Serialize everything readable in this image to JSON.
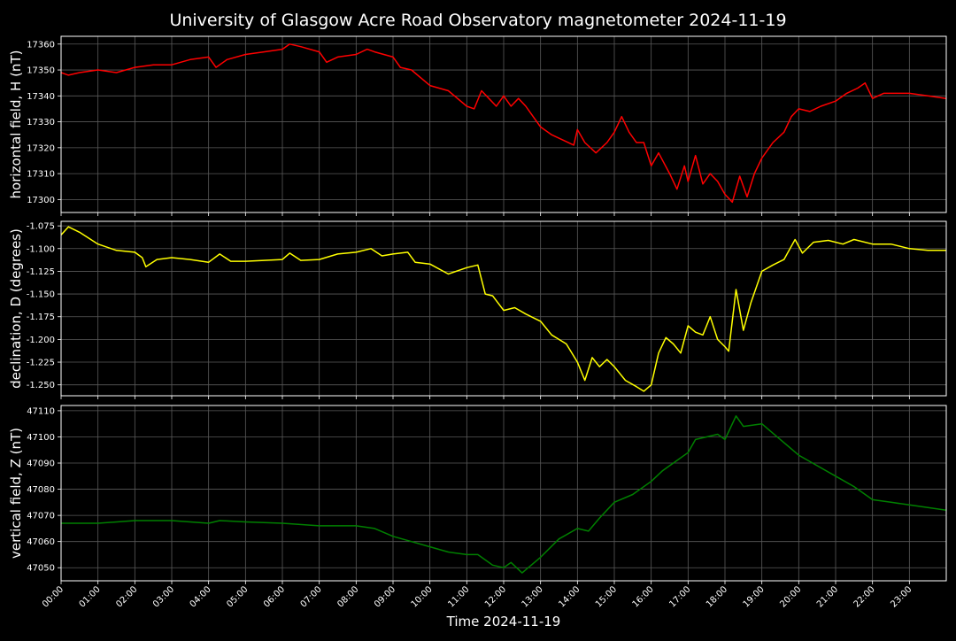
{
  "chart_data": {
    "type": "line",
    "title": "University of Glasgow Acre Road Observatory magnetometer 2024-11-19",
    "xlabel": "Time 2024-11-19",
    "x_unit": "hours",
    "xlim": [
      0,
      24
    ],
    "x_ticks": [
      "00:00",
      "01:00",
      "02:00",
      "03:00",
      "04:00",
      "05:00",
      "06:00",
      "07:00",
      "08:00",
      "09:00",
      "10:00",
      "11:00",
      "12:00",
      "13:00",
      "14:00",
      "15:00",
      "16:00",
      "17:00",
      "18:00",
      "19:00",
      "20:00",
      "21:00",
      "22:00",
      "23:00"
    ],
    "grid": true,
    "panels": [
      {
        "ylabel": "horizontal field, H (nT)",
        "color": "#ff0000",
        "ylim": [
          17295,
          17363
        ],
        "y_ticks": [
          "17300",
          "17310",
          "17320",
          "17330",
          "17340",
          "17350",
          "17360"
        ],
        "y_tick_values": [
          17300,
          17310,
          17320,
          17330,
          17340,
          17350,
          17360
        ],
        "points": [
          [
            0,
            17349
          ],
          [
            0.2,
            17348
          ],
          [
            0.5,
            17349
          ],
          [
            1,
            17350
          ],
          [
            1.5,
            17349
          ],
          [
            2,
            17351
          ],
          [
            2.5,
            17352
          ],
          [
            3,
            17352
          ],
          [
            3.5,
            17354
          ],
          [
            4,
            17355
          ],
          [
            4.2,
            17351
          ],
          [
            4.5,
            17354
          ],
          [
            5,
            17356
          ],
          [
            5.5,
            17357
          ],
          [
            6,
            17358
          ],
          [
            6.2,
            17360
          ],
          [
            6.5,
            17359
          ],
          [
            7,
            17357
          ],
          [
            7.2,
            17353
          ],
          [
            7.5,
            17355
          ],
          [
            8,
            17356
          ],
          [
            8.3,
            17358
          ],
          [
            8.5,
            17357
          ],
          [
            9,
            17355
          ],
          [
            9.2,
            17351
          ],
          [
            9.5,
            17350
          ],
          [
            10,
            17344
          ],
          [
            10.5,
            17342
          ],
          [
            11,
            17336
          ],
          [
            11.2,
            17335
          ],
          [
            11.4,
            17342
          ],
          [
            11.6,
            17339
          ],
          [
            11.8,
            17336
          ],
          [
            12,
            17340
          ],
          [
            12.2,
            17336
          ],
          [
            12.4,
            17339
          ],
          [
            12.6,
            17336
          ],
          [
            12.8,
            17332
          ],
          [
            13,
            17328
          ],
          [
            13.3,
            17325
          ],
          [
            13.6,
            17323
          ],
          [
            13.9,
            17321
          ],
          [
            14,
            17327
          ],
          [
            14.2,
            17322
          ],
          [
            14.5,
            17318
          ],
          [
            14.8,
            17322
          ],
          [
            15,
            17326
          ],
          [
            15.2,
            17332
          ],
          [
            15.4,
            17326
          ],
          [
            15.6,
            17322
          ],
          [
            15.8,
            17322
          ],
          [
            16,
            17313
          ],
          [
            16.2,
            17318
          ],
          [
            16.5,
            17310
          ],
          [
            16.7,
            17304
          ],
          [
            16.9,
            17313
          ],
          [
            17,
            17307
          ],
          [
            17.2,
            17317
          ],
          [
            17.4,
            17306
          ],
          [
            17.6,
            17310
          ],
          [
            17.8,
            17307
          ],
          [
            18,
            17302
          ],
          [
            18.2,
            17299
          ],
          [
            18.4,
            17309
          ],
          [
            18.6,
            17301
          ],
          [
            18.8,
            17310
          ],
          [
            19,
            17316
          ],
          [
            19.3,
            17322
          ],
          [
            19.6,
            17326
          ],
          [
            19.8,
            17332
          ],
          [
            20,
            17335
          ],
          [
            20.3,
            17334
          ],
          [
            20.6,
            17336
          ],
          [
            21,
            17338
          ],
          [
            21.3,
            17341
          ],
          [
            21.6,
            17343
          ],
          [
            21.8,
            17345
          ],
          [
            22,
            17339
          ],
          [
            22.3,
            17341
          ],
          [
            22.7,
            17341
          ],
          [
            23,
            17341
          ],
          [
            23.5,
            17340
          ],
          [
            24,
            17339
          ]
        ]
      },
      {
        "ylabel": "declination, D (degrees)",
        "color": "#ffff00",
        "ylim": [
          -1.262,
          -1.07
        ],
        "y_ticks": [
          "-1.075",
          "-1.100",
          "-1.125",
          "-1.150",
          "-1.175",
          "-1.200",
          "-1.225",
          "-1.250"
        ],
        "y_tick_values": [
          -1.075,
          -1.1,
          -1.125,
          -1.15,
          -1.175,
          -1.2,
          -1.225,
          -1.25
        ],
        "points": [
          [
            0,
            -1.085
          ],
          [
            0.2,
            -1.076
          ],
          [
            0.5,
            -1.082
          ],
          [
            1,
            -1.095
          ],
          [
            1.5,
            -1.102
          ],
          [
            2,
            -1.104
          ],
          [
            2.2,
            -1.11
          ],
          [
            2.3,
            -1.12
          ],
          [
            2.6,
            -1.112
          ],
          [
            3,
            -1.11
          ],
          [
            3.5,
            -1.112
          ],
          [
            4,
            -1.115
          ],
          [
            4.3,
            -1.106
          ],
          [
            4.6,
            -1.114
          ],
          [
            5,
            -1.114
          ],
          [
            5.5,
            -1.113
          ],
          [
            6,
            -1.112
          ],
          [
            6.2,
            -1.105
          ],
          [
            6.5,
            -1.113
          ],
          [
            7,
            -1.112
          ],
          [
            7.5,
            -1.106
          ],
          [
            8,
            -1.104
          ],
          [
            8.4,
            -1.1
          ],
          [
            8.7,
            -1.108
          ],
          [
            9,
            -1.106
          ],
          [
            9.4,
            -1.104
          ],
          [
            9.6,
            -1.115
          ],
          [
            10,
            -1.117
          ],
          [
            10.5,
            -1.128
          ],
          [
            11,
            -1.121
          ],
          [
            11.3,
            -1.118
          ],
          [
            11.5,
            -1.15
          ],
          [
            11.7,
            -1.152
          ],
          [
            12,
            -1.168
          ],
          [
            12.3,
            -1.165
          ],
          [
            12.6,
            -1.172
          ],
          [
            13,
            -1.18
          ],
          [
            13.3,
            -1.195
          ],
          [
            13.7,
            -1.205
          ],
          [
            14,
            -1.225
          ],
          [
            14.2,
            -1.245
          ],
          [
            14.4,
            -1.22
          ],
          [
            14.6,
            -1.23
          ],
          [
            14.8,
            -1.222
          ],
          [
            15,
            -1.23
          ],
          [
            15.3,
            -1.245
          ],
          [
            15.6,
            -1.252
          ],
          [
            15.8,
            -1.257
          ],
          [
            16,
            -1.25
          ],
          [
            16.2,
            -1.215
          ],
          [
            16.4,
            -1.198
          ],
          [
            16.6,
            -1.205
          ],
          [
            16.8,
            -1.215
          ],
          [
            17,
            -1.185
          ],
          [
            17.2,
            -1.192
          ],
          [
            17.4,
            -1.195
          ],
          [
            17.5,
            -1.185
          ],
          [
            17.6,
            -1.175
          ],
          [
            17.8,
            -1.2
          ],
          [
            18,
            -1.208
          ],
          [
            18.1,
            -1.213
          ],
          [
            18.3,
            -1.145
          ],
          [
            18.5,
            -1.19
          ],
          [
            18.7,
            -1.16
          ],
          [
            19,
            -1.125
          ],
          [
            19.3,
            -1.118
          ],
          [
            19.6,
            -1.112
          ],
          [
            19.9,
            -1.09
          ],
          [
            20.1,
            -1.105
          ],
          [
            20.4,
            -1.093
          ],
          [
            20.8,
            -1.091
          ],
          [
            21.2,
            -1.095
          ],
          [
            21.5,
            -1.09
          ],
          [
            22,
            -1.095
          ],
          [
            22.5,
            -1.095
          ],
          [
            23,
            -1.1
          ],
          [
            23.5,
            -1.102
          ],
          [
            24,
            -1.102
          ]
        ]
      },
      {
        "ylabel": "vertical field, Z (nT)",
        "color": "#008000",
        "ylim": [
          47045,
          47112
        ],
        "y_ticks": [
          "47050",
          "47060",
          "47070",
          "47080",
          "47090",
          "47100",
          "47110"
        ],
        "y_tick_values": [
          47050,
          47060,
          47070,
          47080,
          47090,
          47100,
          47110
        ],
        "points": [
          [
            0,
            47067
          ],
          [
            1,
            47067
          ],
          [
            2,
            47068
          ],
          [
            3,
            47068
          ],
          [
            4,
            47067
          ],
          [
            4.3,
            47068
          ],
          [
            5,
            47067.5
          ],
          [
            6,
            47067
          ],
          [
            7,
            47066
          ],
          [
            8,
            47066
          ],
          [
            8.5,
            47065
          ],
          [
            9,
            47062
          ],
          [
            9.5,
            47060
          ],
          [
            10,
            47058
          ],
          [
            10.5,
            47056
          ],
          [
            11,
            47055
          ],
          [
            11.3,
            47055
          ],
          [
            11.7,
            47051
          ],
          [
            12,
            47050
          ],
          [
            12.2,
            47052
          ],
          [
            12.5,
            47048
          ],
          [
            13,
            47054
          ],
          [
            13.5,
            47061
          ],
          [
            14,
            47065
          ],
          [
            14.3,
            47064
          ],
          [
            14.6,
            47069
          ],
          [
            15,
            47075
          ],
          [
            15.5,
            47078
          ],
          [
            16,
            47083
          ],
          [
            16.3,
            47087
          ],
          [
            16.6,
            47090
          ],
          [
            17,
            47094
          ],
          [
            17.2,
            47099
          ],
          [
            17.5,
            47100
          ],
          [
            17.8,
            47101
          ],
          [
            18,
            47099
          ],
          [
            18.3,
            47108
          ],
          [
            18.5,
            47104
          ],
          [
            19,
            47105
          ],
          [
            19.5,
            47099
          ],
          [
            20,
            47093
          ],
          [
            20.5,
            47089
          ],
          [
            21,
            47085
          ],
          [
            21.5,
            47081
          ],
          [
            22,
            47076
          ],
          [
            22.5,
            47075
          ],
          [
            23,
            47074
          ],
          [
            23.5,
            47073
          ],
          [
            24,
            47072
          ]
        ]
      }
    ]
  }
}
